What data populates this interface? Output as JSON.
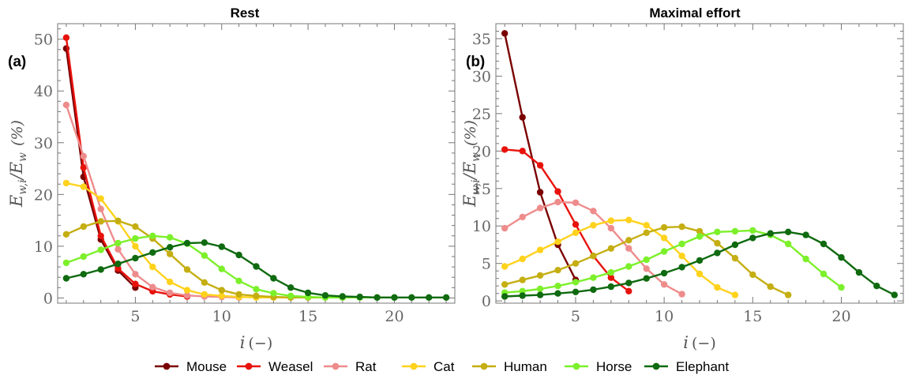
{
  "legend": {
    "entries": [
      "Mouse",
      "Weasel",
      "Rat",
      "Cat",
      "Human",
      "Horse",
      "Elephant"
    ],
    "placement": "bottom"
  },
  "colors": {
    "Mouse": "#7a0000",
    "Weasel": "#e8120c",
    "Rat": "#ee8c8c",
    "Cat": "#ffd21c",
    "Human": "#c4ae12",
    "Horse": "#7cf02a",
    "Elephant": "#0f6a10"
  },
  "chart_data": [
    {
      "type": "line",
      "title": "Rest",
      "panel_label": "(a)",
      "xlabel": "i (−)",
      "ylabel": "E_w,i/E_w (%)",
      "xlim": [
        0.5,
        23.5
      ],
      "ylim": [
        -1,
        53
      ],
      "xticks": [
        5,
        10,
        15,
        20
      ],
      "yticks": [
        0,
        10,
        20,
        30,
        40,
        50
      ],
      "grid": false,
      "series": [
        {
          "name": "Mouse",
          "x": [
            1,
            2,
            3,
            4,
            5
          ],
          "y": [
            48.2,
            23.4,
            11.3,
            5.3,
            2.0
          ]
        },
        {
          "name": "Weasel",
          "x": [
            1,
            2,
            3,
            4,
            5,
            6,
            7,
            8
          ],
          "y": [
            50.3,
            25.2,
            12.0,
            5.7,
            2.7,
            1.3,
            0.7,
            0.3
          ]
        },
        {
          "name": "Rat",
          "x": [
            1,
            2,
            3,
            4,
            5,
            6,
            7,
            8,
            9,
            10,
            11
          ],
          "y": [
            37.3,
            27.4,
            17.2,
            9.4,
            4.6,
            2.1,
            1.0,
            0.5,
            0.3,
            0.2,
            0.1
          ]
        },
        {
          "name": "Cat",
          "x": [
            1,
            2,
            3,
            4,
            5,
            6,
            7,
            8,
            9,
            10,
            11,
            12,
            13,
            14
          ],
          "y": [
            22.2,
            21.5,
            19.2,
            14.8,
            10.0,
            6.0,
            3.1,
            1.5,
            0.7,
            0.4,
            0.2,
            0.1,
            0.1,
            0.1
          ]
        },
        {
          "name": "Human",
          "x": [
            1,
            2,
            3,
            4,
            5,
            6,
            7,
            8,
            9,
            10,
            11,
            12,
            13,
            14,
            15,
            16,
            17
          ],
          "y": [
            12.3,
            13.8,
            14.8,
            14.9,
            13.8,
            11.5,
            8.5,
            5.5,
            3.0,
            1.5,
            0.7,
            0.4,
            0.2,
            0.1,
            0.1,
            0.1,
            0.1
          ]
        },
        {
          "name": "Horse",
          "x": [
            1,
            2,
            3,
            4,
            5,
            6,
            7,
            8,
            9,
            10,
            11,
            12,
            13,
            14,
            15,
            16,
            17,
            18,
            19,
            20
          ],
          "y": [
            6.8,
            8.0,
            9.3,
            10.6,
            11.5,
            12.0,
            11.7,
            10.5,
            8.2,
            5.6,
            3.3,
            1.7,
            0.9,
            0.4,
            0.2,
            0.1,
            0.1,
            0.1,
            0.1,
            0.1
          ]
        },
        {
          "name": "Elephant",
          "x": [
            1,
            2,
            3,
            4,
            5,
            6,
            7,
            8,
            9,
            10,
            11,
            12,
            13,
            14,
            15,
            16,
            17,
            18,
            19,
            20,
            21,
            22,
            23
          ],
          "y": [
            3.8,
            4.6,
            5.5,
            6.6,
            7.7,
            8.8,
            9.8,
            10.6,
            10.7,
            9.9,
            8.3,
            6.1,
            3.8,
            2.0,
            1.0,
            0.5,
            0.3,
            0.2,
            0.1,
            0.1,
            0.1,
            0.1,
            0.1
          ]
        }
      ]
    },
    {
      "type": "line",
      "title": "Maximal effort",
      "panel_label": "(b)",
      "xlabel": "i (−)",
      "ylabel": "E_w,i/E_w (%)",
      "xlim": [
        0.5,
        23.5
      ],
      "ylim": [
        -0.3,
        37
      ],
      "xticks": [
        5,
        10,
        15,
        20
      ],
      "yticks": [
        0,
        5,
        10,
        15,
        20,
        25,
        30,
        35
      ],
      "grid": false,
      "series": [
        {
          "name": "Mouse",
          "x": [
            1,
            2,
            3,
            4,
            5
          ],
          "y": [
            35.7,
            24.5,
            14.5,
            7.5,
            2.8
          ]
        },
        {
          "name": "Weasel",
          "x": [
            1,
            2,
            3,
            4,
            5,
            6,
            7,
            8
          ],
          "y": [
            20.2,
            20.0,
            18.1,
            14.6,
            10.2,
            6.0,
            3.1,
            1.3
          ]
        },
        {
          "name": "Rat",
          "x": [
            1,
            2,
            3,
            4,
            5,
            6,
            7,
            8,
            9,
            10,
            11
          ],
          "y": [
            9.7,
            11.2,
            12.4,
            13.2,
            13.1,
            12.0,
            9.7,
            7.0,
            4.3,
            2.2,
            0.9
          ]
        },
        {
          "name": "Cat",
          "x": [
            1,
            2,
            3,
            4,
            5,
            6,
            7,
            8,
            9,
            10,
            11,
            12,
            13,
            14
          ],
          "y": [
            4.6,
            5.6,
            6.8,
            7.9,
            9.1,
            10.1,
            10.7,
            10.8,
            10.1,
            8.4,
            6.0,
            3.6,
            1.8,
            0.8
          ]
        },
        {
          "name": "Human",
          "x": [
            1,
            2,
            3,
            4,
            5,
            6,
            7,
            8,
            9,
            10,
            11,
            12,
            13,
            14,
            15,
            16,
            17
          ],
          "y": [
            2.2,
            2.8,
            3.4,
            4.1,
            5.0,
            6.0,
            7.0,
            8.1,
            9.1,
            9.8,
            9.9,
            9.3,
            7.7,
            5.7,
            3.5,
            1.9,
            0.8
          ]
        },
        {
          "name": "Horse",
          "x": [
            1,
            2,
            3,
            4,
            5,
            6,
            7,
            8,
            9,
            10,
            11,
            12,
            13,
            14,
            15,
            16,
            17,
            18,
            19,
            20
          ],
          "y": [
            1.1,
            1.3,
            1.6,
            2.0,
            2.5,
            3.1,
            3.8,
            4.6,
            5.5,
            6.6,
            7.6,
            8.6,
            9.2,
            9.3,
            9.4,
            8.8,
            7.6,
            5.6,
            3.6,
            1.8
          ]
        },
        {
          "name": "Elephant",
          "x": [
            1,
            2,
            3,
            4,
            5,
            6,
            7,
            8,
            9,
            10,
            11,
            12,
            13,
            14,
            15,
            16,
            17,
            18,
            19,
            20,
            21,
            22,
            23
          ],
          "y": [
            0.6,
            0.7,
            0.8,
            1.0,
            1.2,
            1.5,
            1.9,
            2.4,
            3.0,
            3.7,
            4.5,
            5.4,
            6.4,
            7.5,
            8.4,
            9.0,
            9.2,
            8.8,
            7.6,
            5.8,
            3.8,
            2.0,
            0.8
          ]
        }
      ]
    }
  ]
}
